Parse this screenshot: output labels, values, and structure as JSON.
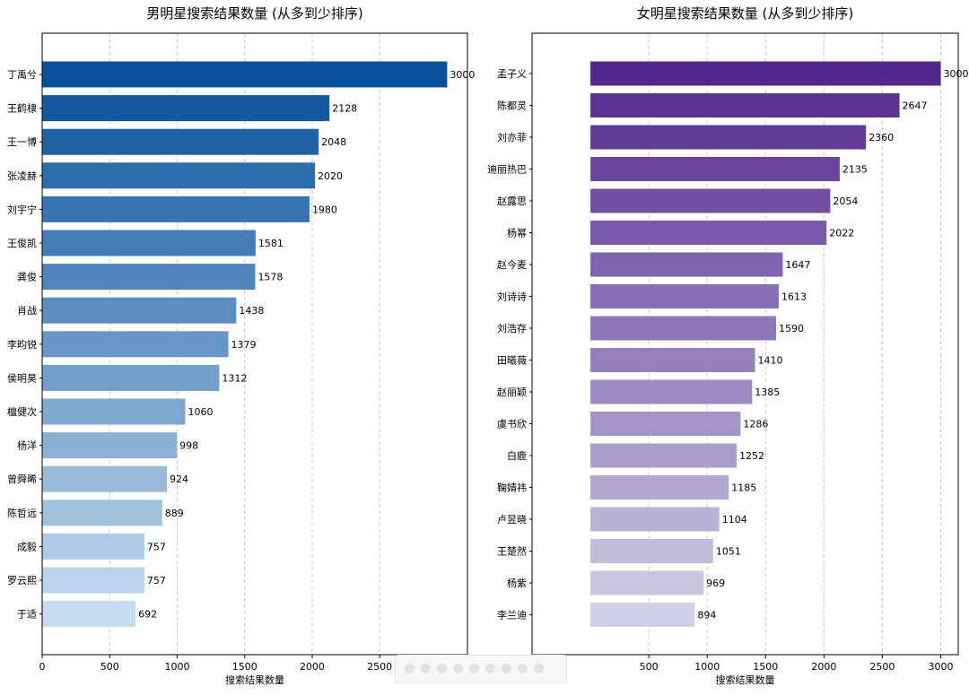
{
  "chart_data": [
    {
      "type": "bar",
      "orientation": "horizontal",
      "title": "男明星搜索结果数量 (从多到少排序)",
      "xlabel": "搜索结果数量",
      "ylabel": "",
      "xlim": [
        0,
        3150
      ],
      "xticks": [
        0,
        500,
        1000,
        1500,
        2000,
        2500
      ],
      "grid": "x-dashed",
      "color_from": "#08519c",
      "color_to": "#c6dbef",
      "categories": [
        "丁禹兮",
        "王鹤棣",
        "王一博",
        "张凌赫",
        "刘宇宁",
        "王俊凯",
        "龚俊",
        "肖战",
        "李昀锐",
        "侯明昊",
        "檀健次",
        "杨洋",
        "曾舜晞",
        "陈哲远",
        "成毅",
        "罗云熙",
        "于适"
      ],
      "values": [
        3000,
        2128,
        2048,
        2020,
        1980,
        1581,
        1578,
        1438,
        1379,
        1312,
        1060,
        998,
        924,
        889,
        757,
        757,
        692
      ]
    },
    {
      "type": "bar",
      "orientation": "horizontal",
      "title": "女明星搜索结果数量 (从多到少排序)",
      "xlabel": "搜索结果数量",
      "ylabel": "",
      "xlim": [
        -500,
        3150
      ],
      "xticks": [
        500,
        1000,
        1500,
        2000,
        2500,
        3000
      ],
      "grid": "x-dashed",
      "color_from": "#54278f",
      "color_to": "#cfd0e6",
      "categories": [
        "孟子义",
        "陈都灵",
        "刘亦菲",
        "迪丽热巴",
        "赵露思",
        "杨幂",
        "赵今麦",
        "刘诗诗",
        "刘浩存",
        "田曦薇",
        "赵丽颖",
        "虞书欣",
        "白鹿",
        "鞠婧祎",
        "卢昱晓",
        "王楚然",
        "杨紫",
        "李兰迪"
      ],
      "values": [
        3000,
        2647,
        2360,
        2135,
        2054,
        2022,
        1647,
        1613,
        1590,
        1410,
        1385,
        1286,
        1252,
        1185,
        1104,
        1051,
        969,
        894
      ]
    }
  ]
}
